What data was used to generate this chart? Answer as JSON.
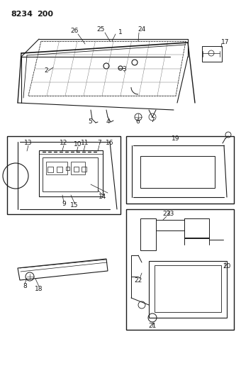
{
  "title_part1": "8234",
  "title_part2": "200",
  "bg_color": "#ffffff",
  "line_color": "#1a1a1a",
  "fig_width": 3.4,
  "fig_height": 5.33,
  "dpi": 100
}
